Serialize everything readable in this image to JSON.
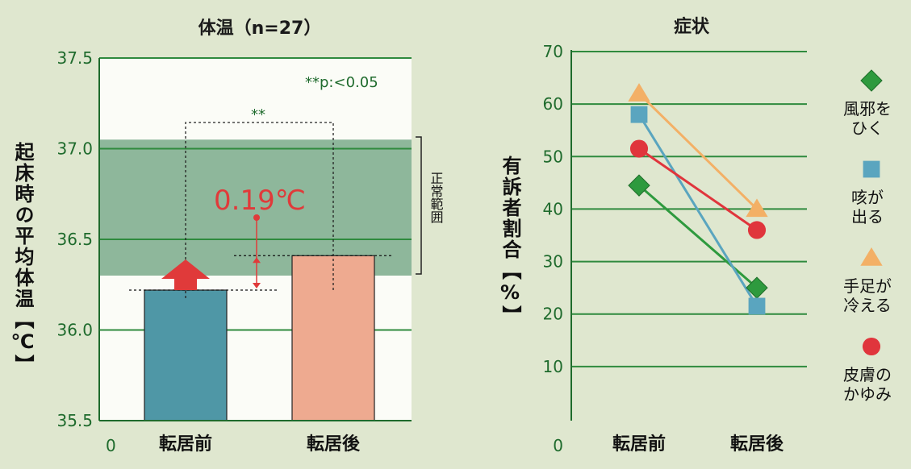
{
  "chart_data": [
    {
      "type": "bar",
      "title": "体温（n=27）",
      "ylabel": "起床時の平均体温【℃】",
      "categories": [
        "転居前",
        "転居後"
      ],
      "values": [
        36.22,
        36.41
      ],
      "ylim": [
        35.5,
        37.5
      ],
      "yticks": [
        "37.5",
        "37.0",
        "36.5",
        "36.0",
        "35.5"
      ],
      "axis_origin_label": "0",
      "grid": true,
      "normal_range": {
        "label": "正常範囲",
        "from": 36.3,
        "to": 37.05
      },
      "significance": {
        "marker": "**",
        "note": "**p:<0.05"
      },
      "difference_label": "0.19℃",
      "colors": {
        "before": "#4f97a6",
        "after": "#eeaa90",
        "normal_band": "#6aa07c",
        "arrow": "#e03a3a",
        "axis_text": "#1f6b2d"
      }
    },
    {
      "type": "line",
      "title": "症状",
      "ylabel": "有訴者割合【%】",
      "categories": [
        "転居前",
        "転居後"
      ],
      "ylim": [
        0,
        70
      ],
      "yticks": [
        "70",
        "60",
        "50",
        "40",
        "30",
        "20",
        "10",
        "0"
      ],
      "grid": true,
      "legend_position": "right",
      "series": [
        {
          "name": "風邪をひく",
          "name_lines": [
            "風邪を",
            "ひく"
          ],
          "marker": "diamond",
          "color": "#2e9a3e",
          "values": [
            44.5,
            25
          ]
        },
        {
          "name": "咳が出る",
          "name_lines": [
            "咳が",
            "出る"
          ],
          "marker": "square",
          "color": "#5aa5bf",
          "values": [
            58,
            21.5
          ]
        },
        {
          "name": "手足が冷える",
          "name_lines": [
            "手足が",
            "冷える"
          ],
          "marker": "triangle",
          "color": "#f3b066",
          "values": [
            62,
            40
          ]
        },
        {
          "name": "皮膚のかゆみ",
          "name_lines": [
            "皮膚の",
            "かゆみ"
          ],
          "marker": "circle",
          "color": "#e0353c",
          "values": [
            51.5,
            36
          ]
        }
      ]
    }
  ]
}
